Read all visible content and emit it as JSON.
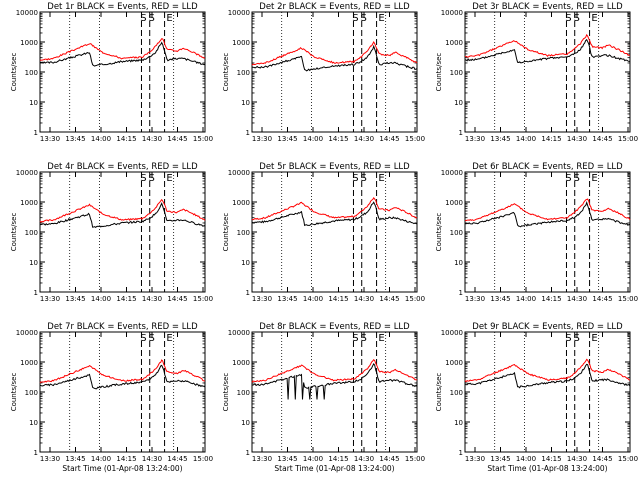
{
  "colors": {
    "background": "#ffffff",
    "events": "#000000",
    "lld": "#ff0000",
    "axes": "#000000"
  },
  "chart_data": [
    {
      "type": "line",
      "title": "Det 1r BLACK = Events, RED = LLD",
      "ylabel": "Counts/sec",
      "xlabel": "Start Time (01-Apr-08 13:24:00)",
      "yscale": "log",
      "ylim": [
        1,
        10000
      ],
      "yticks": [
        "1",
        "10",
        "100",
        "1000",
        "10000"
      ],
      "xticks": [
        "13:30",
        "13:45",
        "14:00",
        "14:15",
        "14:30",
        "14:45",
        "15:00"
      ],
      "markers": [
        "S",
        "S",
        "E"
      ],
      "show_ylabel": true,
      "show_xlabel": false
    },
    {
      "type": "line",
      "title": "Det 2r BLACK = Events, RED = LLD",
      "ylabel": "Counts/sec",
      "xlabel": "Start Time (01-Apr-08 13:24:00)",
      "yscale": "log",
      "ylim": [
        1,
        10000
      ],
      "yticks": [
        "1",
        "10",
        "100",
        "1000",
        "10000"
      ],
      "xticks": [
        "13:30",
        "13:45",
        "14:00",
        "14:15",
        "14:30",
        "14:45",
        "15:00"
      ],
      "markers": [
        "S",
        "S",
        "E"
      ],
      "show_ylabel": true,
      "show_xlabel": false
    },
    {
      "type": "line",
      "title": "Det 3r BLACK = Events, RED = LLD",
      "ylabel": "Counts/sec",
      "xlabel": "Start Time (01-Apr-08 13:24:00)",
      "yscale": "log",
      "ylim": [
        1,
        10000
      ],
      "yticks": [
        "1",
        "10",
        "100",
        "1000",
        "10000"
      ],
      "xticks": [
        "13:30",
        "13:45",
        "14:00",
        "14:15",
        "14:30",
        "14:45",
        "15:00"
      ],
      "markers": [
        "S",
        "S",
        "E"
      ],
      "show_ylabel": true,
      "show_xlabel": false
    },
    {
      "type": "line",
      "title": "Det 4r BLACK = Events, RED = LLD",
      "ylabel": "Counts/sec",
      "xlabel": "Start Time (01-Apr-08 13:24:00)",
      "yscale": "log",
      "ylim": [
        1,
        10000
      ],
      "yticks": [
        "1",
        "10",
        "100",
        "1000",
        "10000"
      ],
      "xticks": [
        "13:30",
        "13:45",
        "14:00",
        "14:15",
        "14:30",
        "14:45",
        "15:00"
      ],
      "markers": [
        "S",
        "S",
        "E"
      ],
      "show_ylabel": true,
      "show_xlabel": false
    },
    {
      "type": "line",
      "title": "Det 5r BLACK = Events, RED = LLD",
      "ylabel": "Counts/sec",
      "xlabel": "Start Time (01-Apr-08 13:24:00)",
      "yscale": "log",
      "ylim": [
        1,
        10000
      ],
      "yticks": [
        "1",
        "10",
        "100",
        "1000",
        "10000"
      ],
      "xticks": [
        "13:30",
        "13:45",
        "14:00",
        "14:15",
        "14:30",
        "14:45",
        "15:00"
      ],
      "markers": [
        "S",
        "S",
        "E"
      ],
      "show_ylabel": true,
      "show_xlabel": false
    },
    {
      "type": "line",
      "title": "Det 6r BLACK = Events, RED = LLD",
      "ylabel": "Counts/sec",
      "xlabel": "Start Time (01-Apr-08 13:24:00)",
      "yscale": "log",
      "ylim": [
        1,
        10000
      ],
      "yticks": [
        "1",
        "10",
        "100",
        "1000",
        "10000"
      ],
      "xticks": [
        "13:30",
        "13:45",
        "14:00",
        "14:15",
        "14:30",
        "14:45",
        "15:00"
      ],
      "markers": [
        "S",
        "S",
        "E"
      ],
      "show_ylabel": true,
      "show_xlabel": false
    },
    {
      "type": "line",
      "title": "Det 7r BLACK = Events, RED = LLD",
      "ylabel": "Counts/sec",
      "xlabel": "Start Time (01-Apr-08 13:24:00)",
      "yscale": "log",
      "ylim": [
        1,
        10000
      ],
      "yticks": [
        "1",
        "10",
        "100",
        "1000",
        "10000"
      ],
      "xticks": [
        "13:30",
        "13:45",
        "14:00",
        "14:15",
        "14:30",
        "14:45",
        "15:00"
      ],
      "markers": [
        "S",
        "S",
        "E"
      ],
      "show_ylabel": true,
      "show_xlabel": true
    },
    {
      "type": "line",
      "title": "Det 8r BLACK = Events, RED = LLD",
      "ylabel": "Counts/sec",
      "xlabel": "Start Time (01-Apr-08 13:24:00)",
      "yscale": "log",
      "ylim": [
        1,
        10000
      ],
      "yticks": [
        "1",
        "10",
        "100",
        "1000",
        "10000"
      ],
      "xticks": [
        "13:30",
        "13:45",
        "14:00",
        "14:15",
        "14:30",
        "14:45",
        "15:00"
      ],
      "markers": [
        "S",
        "S",
        "E"
      ],
      "show_ylabel": true,
      "show_xlabel": true
    },
    {
      "type": "line",
      "title": "Det 9r BLACK = Events, RED = LLD",
      "ylabel": "Counts/sec",
      "xlabel": "Start Time (01-Apr-08 13:24:00)",
      "yscale": "log",
      "ylim": [
        1,
        10000
      ],
      "yticks": [
        "1",
        "10",
        "100",
        "1000",
        "10000"
      ],
      "xticks": [
        "13:30",
        "13:45",
        "14:00",
        "14:15",
        "14:30",
        "14:45",
        "15:00"
      ],
      "markers": [
        "S",
        "S",
        "E"
      ],
      "show_ylabel": true,
      "show_xlabel": true
    }
  ]
}
